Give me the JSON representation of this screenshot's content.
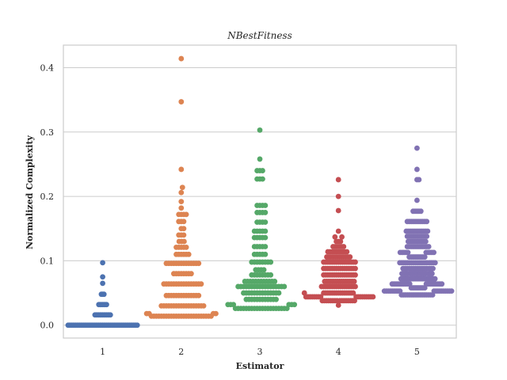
{
  "chart_data": {
    "type": "scatter",
    "subtype": "swarm",
    "title": "NBestFitness",
    "xlabel": "Estimator",
    "ylabel": "Normalized Complexity",
    "categories": [
      "1",
      "2",
      "3",
      "4",
      "5"
    ],
    "ylim": [
      -0.02,
      0.435
    ],
    "yticks": [
      0.0,
      0.1,
      0.2,
      0.3,
      0.4
    ],
    "ytick_labels": [
      "0.0",
      "0.1",
      "0.2",
      "0.3",
      "0.4"
    ],
    "grid": true,
    "legend": "none",
    "series": [
      {
        "category": "1",
        "color": "#4c72b0",
        "values": [
          0,
          0,
          0,
          0,
          0,
          0,
          0,
          0,
          0,
          0,
          0,
          0,
          0,
          0,
          0,
          0,
          0,
          0,
          0,
          0,
          0,
          0,
          0,
          0,
          0,
          0,
          0,
          0,
          0,
          0,
          0,
          0,
          0,
          0,
          0,
          0,
          0,
          0,
          0,
          0,
          0,
          0,
          0,
          0,
          0,
          0,
          0,
          0,
          0,
          0,
          0,
          0,
          0,
          0,
          0,
          0.016,
          0.016,
          0.016,
          0.016,
          0.016,
          0.016,
          0.016,
          0.016,
          0.016,
          0.016,
          0.016,
          0.016,
          0.016,
          0.032,
          0.032,
          0.032,
          0.032,
          0.032,
          0.032,
          0.032,
          0.048,
          0.048,
          0.048,
          0.065,
          0.075,
          0.097
        ]
      },
      {
        "category": "2",
        "color": "#dd8452",
        "values": [
          0.014,
          0.014,
          0.014,
          0.014,
          0.014,
          0.014,
          0.014,
          0.014,
          0.014,
          0.014,
          0.014,
          0.014,
          0.014,
          0.014,
          0.014,
          0.014,
          0.014,
          0.014,
          0.014,
          0.014,
          0.014,
          0.014,
          0.014,
          0.014,
          0.014,
          0.018,
          0.018,
          0.018,
          0.018,
          0.03,
          0.03,
          0.03,
          0.03,
          0.03,
          0.03,
          0.03,
          0.03,
          0.03,
          0.03,
          0.03,
          0.03,
          0.03,
          0.03,
          0.03,
          0.03,
          0.03,
          0.03,
          0.046,
          0.046,
          0.046,
          0.046,
          0.046,
          0.046,
          0.046,
          0.046,
          0.046,
          0.046,
          0.046,
          0.046,
          0.046,
          0.046,
          0.064,
          0.064,
          0.064,
          0.064,
          0.064,
          0.064,
          0.064,
          0.064,
          0.064,
          0.064,
          0.064,
          0.064,
          0.064,
          0.064,
          0.064,
          0.064,
          0.08,
          0.08,
          0.08,
          0.08,
          0.08,
          0.08,
          0.08,
          0.08,
          0.096,
          0.096,
          0.096,
          0.096,
          0.096,
          0.096,
          0.096,
          0.096,
          0.096,
          0.096,
          0.096,
          0.096,
          0.096,
          0.096,
          0.11,
          0.11,
          0.11,
          0.11,
          0.11,
          0.11,
          0.121,
          0.121,
          0.121,
          0.121,
          0.121,
          0.13,
          0.13,
          0.13,
          0.14,
          0.14,
          0.14,
          0.15,
          0.15,
          0.161,
          0.161,
          0.161,
          0.172,
          0.172,
          0.172,
          0.172,
          0.182,
          0.192,
          0.206,
          0.214,
          0.242,
          0.347,
          0.414
        ]
      },
      {
        "category": "3",
        "color": "#55a868",
        "values": [
          0.026,
          0.026,
          0.026,
          0.026,
          0.026,
          0.026,
          0.026,
          0.026,
          0.026,
          0.026,
          0.026,
          0.026,
          0.026,
          0.026,
          0.026,
          0.026,
          0.026,
          0.026,
          0.026,
          0.026,
          0.032,
          0.032,
          0.032,
          0.032,
          0.032,
          0.032,
          0.04,
          0.04,
          0.04,
          0.04,
          0.04,
          0.04,
          0.04,
          0.04,
          0.04,
          0.04,
          0.04,
          0.04,
          0.05,
          0.05,
          0.05,
          0.05,
          0.05,
          0.05,
          0.05,
          0.05,
          0.05,
          0.05,
          0.05,
          0.05,
          0.05,
          0.05,
          0.06,
          0.06,
          0.06,
          0.06,
          0.06,
          0.06,
          0.06,
          0.06,
          0.06,
          0.06,
          0.06,
          0.06,
          0.06,
          0.06,
          0.06,
          0.06,
          0.06,
          0.06,
          0.068,
          0.068,
          0.068,
          0.068,
          0.068,
          0.068,
          0.068,
          0.068,
          0.068,
          0.068,
          0.068,
          0.068,
          0.078,
          0.078,
          0.078,
          0.078,
          0.078,
          0.078,
          0.078,
          0.078,
          0.086,
          0.086,
          0.086,
          0.086,
          0.098,
          0.098,
          0.098,
          0.098,
          0.098,
          0.098,
          0.098,
          0.098,
          0.11,
          0.11,
          0.11,
          0.11,
          0.11,
          0.122,
          0.122,
          0.122,
          0.122,
          0.122,
          0.136,
          0.136,
          0.136,
          0.136,
          0.136,
          0.146,
          0.146,
          0.146,
          0.146,
          0.146,
          0.16,
          0.16,
          0.16,
          0.16,
          0.175,
          0.175,
          0.175,
          0.175,
          0.186,
          0.186,
          0.186,
          0.186,
          0.227,
          0.227,
          0.227,
          0.24,
          0.24,
          0.24,
          0.258,
          0.303
        ]
      },
      {
        "category": "4",
        "color": "#c44e52",
        "values": [
          0.031,
          0.038,
          0.038,
          0.038,
          0.038,
          0.038,
          0.038,
          0.038,
          0.038,
          0.038,
          0.038,
          0.038,
          0.038,
          0.038,
          0.038,
          0.038,
          0.038,
          0.044,
          0.044,
          0.044,
          0.044,
          0.044,
          0.044,
          0.044,
          0.044,
          0.044,
          0.044,
          0.044,
          0.044,
          0.044,
          0.044,
          0.044,
          0.044,
          0.044,
          0.05,
          0.05,
          0.05,
          0.05,
          0.05,
          0.05,
          0.05,
          0.05,
          0.05,
          0.05,
          0.05,
          0.05,
          0.05,
          0.05,
          0.05,
          0.05,
          0.06,
          0.06,
          0.06,
          0.06,
          0.06,
          0.06,
          0.06,
          0.06,
          0.06,
          0.06,
          0.06,
          0.06,
          0.06,
          0.06,
          0.06,
          0.06,
          0.06,
          0.068,
          0.068,
          0.068,
          0.068,
          0.068,
          0.068,
          0.068,
          0.068,
          0.068,
          0.068,
          0.068,
          0.068,
          0.068,
          0.068,
          0.068,
          0.078,
          0.078,
          0.078,
          0.078,
          0.078,
          0.078,
          0.078,
          0.078,
          0.078,
          0.078,
          0.078,
          0.078,
          0.078,
          0.078,
          0.078,
          0.078,
          0.088,
          0.088,
          0.088,
          0.088,
          0.088,
          0.088,
          0.088,
          0.088,
          0.088,
          0.088,
          0.088,
          0.088,
          0.088,
          0.088,
          0.088,
          0.088,
          0.098,
          0.098,
          0.098,
          0.098,
          0.098,
          0.098,
          0.098,
          0.098,
          0.098,
          0.098,
          0.098,
          0.098,
          0.098,
          0.098,
          0.098,
          0.098,
          0.106,
          0.106,
          0.106,
          0.106,
          0.106,
          0.106,
          0.106,
          0.106,
          0.106,
          0.106,
          0.106,
          0.106,
          0.114,
          0.114,
          0.114,
          0.114,
          0.114,
          0.114,
          0.114,
          0.114,
          0.114,
          0.114,
          0.122,
          0.122,
          0.122,
          0.122,
          0.122,
          0.122,
          0.13,
          0.13,
          0.13,
          0.137,
          0.137,
          0.146,
          0.178,
          0.2,
          0.226
        ]
      },
      {
        "category": "5",
        "color": "#8172b3",
        "values": [
          0.047,
          0.047,
          0.047,
          0.047,
          0.047,
          0.047,
          0.047,
          0.047,
          0.047,
          0.047,
          0.047,
          0.047,
          0.047,
          0.047,
          0.047,
          0.047,
          0.047,
          0.053,
          0.053,
          0.053,
          0.053,
          0.053,
          0.053,
          0.053,
          0.053,
          0.053,
          0.053,
          0.053,
          0.053,
          0.053,
          0.053,
          0.053,
          0.053,
          0.053,
          0.053,
          0.053,
          0.058,
          0.058,
          0.058,
          0.058,
          0.058,
          0.058,
          0.058,
          0.058,
          0.064,
          0.064,
          0.064,
          0.064,
          0.064,
          0.064,
          0.064,
          0.064,
          0.064,
          0.064,
          0.064,
          0.064,
          0.064,
          0.064,
          0.064,
          0.064,
          0.064,
          0.064,
          0.064,
          0.072,
          0.072,
          0.072,
          0.072,
          0.072,
          0.072,
          0.072,
          0.072,
          0.072,
          0.072,
          0.072,
          0.072,
          0.072,
          0.072,
          0.072,
          0.072,
          0.072,
          0.072,
          0.08,
          0.08,
          0.08,
          0.08,
          0.08,
          0.08,
          0.08,
          0.08,
          0.08,
          0.08,
          0.08,
          0.08,
          0.08,
          0.08,
          0.08,
          0.08,
          0.088,
          0.088,
          0.088,
          0.088,
          0.088,
          0.088,
          0.088,
          0.088,
          0.088,
          0.088,
          0.088,
          0.088,
          0.088,
          0.088,
          0.088,
          0.088,
          0.097,
          0.097,
          0.097,
          0.097,
          0.097,
          0.097,
          0.097,
          0.097,
          0.097,
          0.097,
          0.097,
          0.097,
          0.097,
          0.097,
          0.097,
          0.097,
          0.097,
          0.097,
          0.097,
          0.106,
          0.106,
          0.106,
          0.106,
          0.106,
          0.106,
          0.106,
          0.106,
          0.106,
          0.113,
          0.113,
          0.113,
          0.113,
          0.113,
          0.113,
          0.113,
          0.113,
          0.113,
          0.113,
          0.122,
          0.122,
          0.122,
          0.122,
          0.122,
          0.122,
          0.122,
          0.122,
          0.122,
          0.122,
          0.122,
          0.122,
          0.13,
          0.13,
          0.13,
          0.13,
          0.13,
          0.13,
          0.13,
          0.13,
          0.13,
          0.13,
          0.138,
          0.138,
          0.138,
          0.138,
          0.138,
          0.138,
          0.138,
          0.138,
          0.138,
          0.138,
          0.138,
          0.146,
          0.146,
          0.146,
          0.146,
          0.146,
          0.146,
          0.146,
          0.146,
          0.146,
          0.146,
          0.146,
          0.146,
          0.161,
          0.161,
          0.161,
          0.161,
          0.161,
          0.161,
          0.161,
          0.161,
          0.161,
          0.161,
          0.161,
          0.177,
          0.177,
          0.177,
          0.177,
          0.177,
          0.194,
          0.226,
          0.226,
          0.242,
          0.275
        ]
      }
    ]
  }
}
